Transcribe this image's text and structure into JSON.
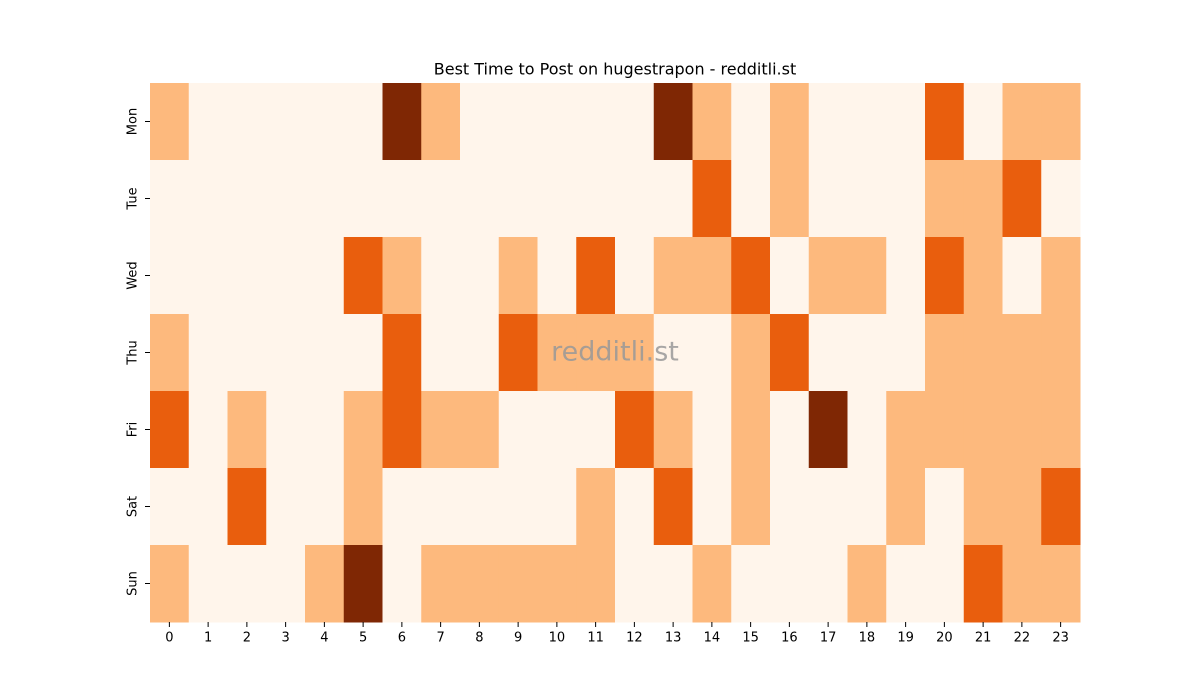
{
  "chart_data": {
    "type": "heatmap",
    "title": "Best Time to Post on hugestrapon - redditli.st",
    "watermark": "redditli.st",
    "x": [
      0,
      1,
      2,
      3,
      4,
      5,
      6,
      7,
      8,
      9,
      10,
      11,
      12,
      13,
      14,
      15,
      16,
      17,
      18,
      19,
      20,
      21,
      22,
      23
    ],
    "categories": [
      "Mon",
      "Tue",
      "Wed",
      "Thu",
      "Fri",
      "Sat",
      "Sun"
    ],
    "colorscale": [
      "#fff5eb",
      "#fdb97d",
      "#e95e0d",
      "#7f2704"
    ],
    "values": [
      [
        1,
        0,
        0,
        0,
        0,
        0,
        3,
        1,
        0,
        0,
        0,
        0,
        0,
        3,
        1,
        0,
        1,
        0,
        0,
        0,
        2,
        0,
        1,
        1
      ],
      [
        0,
        0,
        0,
        0,
        0,
        0,
        0,
        0,
        0,
        0,
        0,
        0,
        0,
        0,
        2,
        0,
        1,
        0,
        0,
        0,
        1,
        1,
        2,
        0
      ],
      [
        0,
        0,
        0,
        0,
        0,
        2,
        1,
        0,
        0,
        1,
        0,
        2,
        0,
        1,
        1,
        2,
        0,
        1,
        1,
        0,
        2,
        1,
        0,
        1
      ],
      [
        1,
        0,
        0,
        0,
        0,
        0,
        2,
        0,
        0,
        2,
        1,
        1,
        1,
        0,
        0,
        1,
        2,
        0,
        0,
        0,
        1,
        1,
        1,
        1
      ],
      [
        2,
        0,
        1,
        0,
        0,
        1,
        2,
        1,
        1,
        0,
        0,
        0,
        2,
        1,
        0,
        1,
        0,
        3,
        0,
        1,
        1,
        1,
        1,
        1
      ],
      [
        0,
        0,
        2,
        0,
        0,
        1,
        0,
        0,
        0,
        0,
        0,
        1,
        0,
        2,
        0,
        1,
        0,
        0,
        0,
        1,
        0,
        1,
        1,
        2
      ],
      [
        1,
        0,
        0,
        0,
        1,
        3,
        0,
        1,
        1,
        1,
        1,
        1,
        0,
        0,
        1,
        0,
        0,
        0,
        1,
        0,
        0,
        2,
        1,
        1
      ]
    ]
  }
}
